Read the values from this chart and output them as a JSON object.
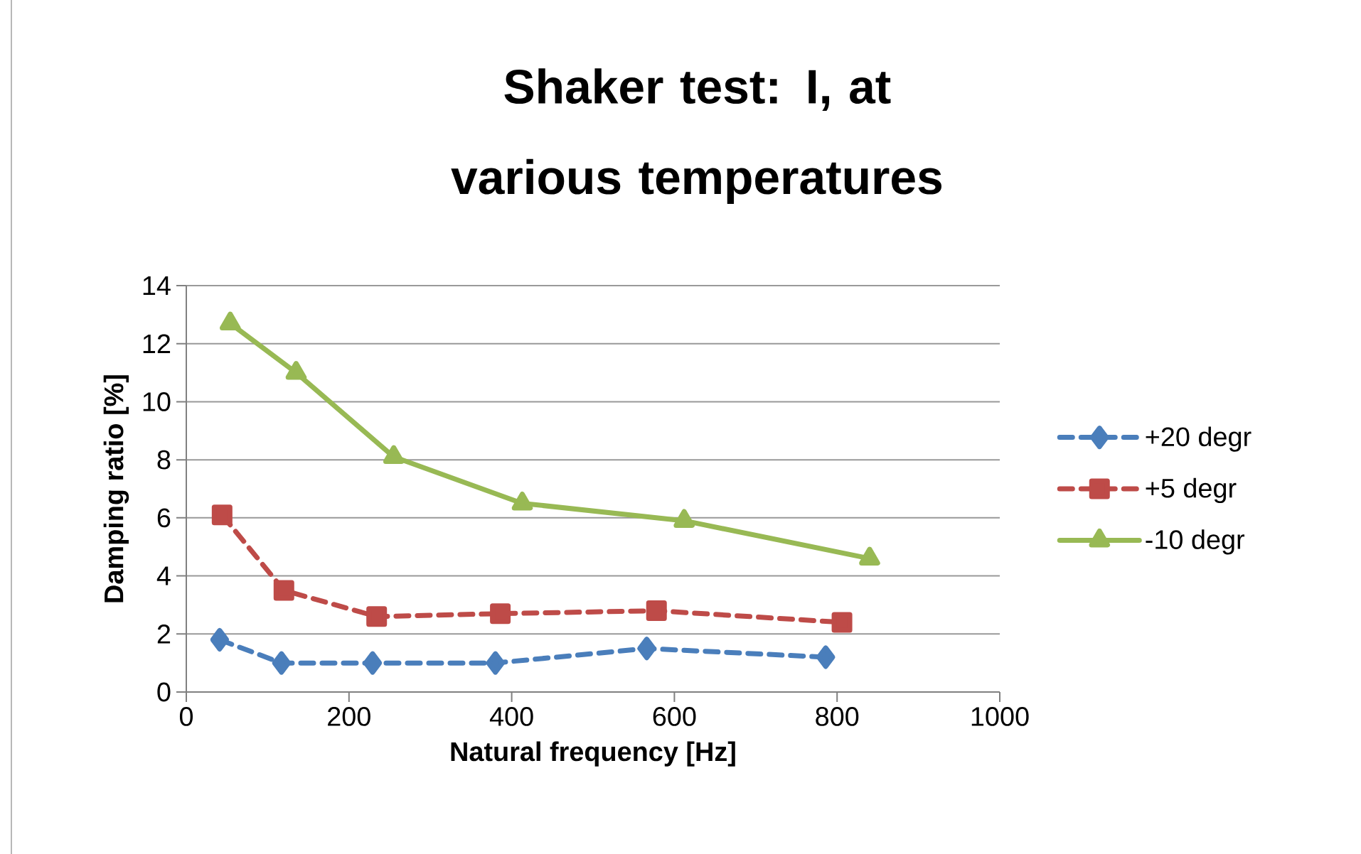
{
  "chart_data": {
    "type": "line",
    "title": "Shaker test: I, at various temperatures",
    "xlabel": "Natural frequency [Hz]",
    "ylabel": "Damping ratio [%]",
    "xlim": [
      0,
      1000
    ],
    "xticks": [
      0,
      200,
      400,
      600,
      800,
      1000
    ],
    "ylim": [
      0,
      14
    ],
    "yticks": [
      0,
      2,
      4,
      6,
      8,
      10,
      12,
      14
    ],
    "grid": "y",
    "legend": "right",
    "series": [
      {
        "name": "+20 degr",
        "color": "#4a7ebb",
        "marker": "diamond",
        "line_style": "dashed",
        "x": [
          41,
          117,
          229,
          380,
          566,
          786
        ],
        "values": [
          1.8,
          1.0,
          1.0,
          1.0,
          1.5,
          1.2
        ]
      },
      {
        "name": "+5 degr",
        "color": "#be4b48",
        "marker": "square",
        "line_style": "dashed",
        "x": [
          44,
          120,
          234,
          386,
          578,
          806
        ],
        "values": [
          6.1,
          3.5,
          2.6,
          2.7,
          2.8,
          2.4
        ]
      },
      {
        "name": "-10 degr",
        "color": "#98b954",
        "marker": "triangle",
        "line_style": "solid",
        "x": [
          54,
          135,
          255,
          413,
          612,
          840
        ],
        "values": [
          12.7,
          11.0,
          8.1,
          6.5,
          5.9,
          4.6
        ]
      }
    ]
  }
}
